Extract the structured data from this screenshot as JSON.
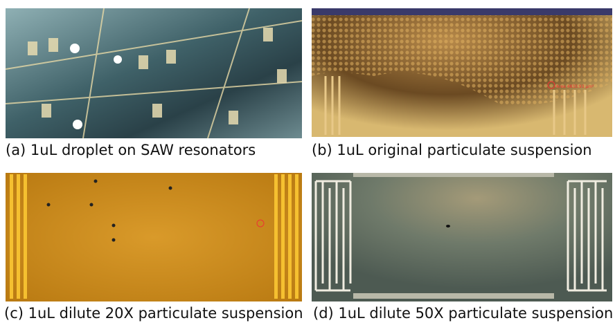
{
  "panels": [
    {
      "caption": "(a) 1uL droplet on SAW resonators"
    },
    {
      "caption": "(b) 1uL original particulate suspension",
      "annotation": "Area 4833.93 µm²"
    },
    {
      "caption": "(c) 1uL dilute 20X particulate suspension"
    },
    {
      "caption": "(d) 1uL dilute 50X particulate suspension"
    }
  ]
}
